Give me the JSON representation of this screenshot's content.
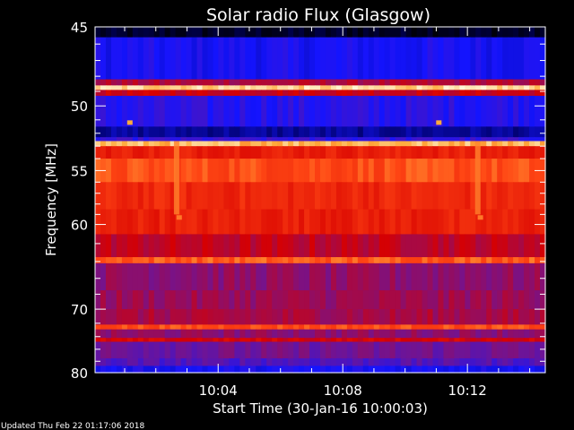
{
  "chart_data": {
    "type": "heatmap",
    "title": "Solar radio Flux (Glasgow)",
    "ylabel": "Frequency [MHz]",
    "xlabel": "Start Time (30-Jan-16 10:00:03)",
    "ylim": [
      45,
      80
    ],
    "yscale": "reciprocal",
    "y_ticks": [
      45,
      50,
      55,
      60,
      70,
      80
    ],
    "y_minor_ticks": [
      46,
      47,
      48,
      49,
      51,
      52,
      53,
      54,
      56,
      57,
      58,
      59,
      62,
      64,
      66,
      68,
      72,
      74,
      76,
      78
    ],
    "xlim": [
      "10:00:03",
      "10:14:30"
    ],
    "x_ticks": [
      "10:04",
      "10:08",
      "10:12"
    ],
    "x_minor_ticks": [
      "10:01",
      "10:02",
      "10:03",
      "10:05",
      "10:06",
      "10:07",
      "10:09",
      "10:10",
      "10:11",
      "10:13",
      "10:14"
    ],
    "colormap": "black-blue-red-yellow-white",
    "bands": [
      {
        "f0": 45.0,
        "f1": 45.6,
        "level": 0.05
      },
      {
        "f0": 45.6,
        "f1": 48.2,
        "level": 0.3
      },
      {
        "f0": 48.2,
        "f1": 48.6,
        "level": 0.55
      },
      {
        "f0": 48.6,
        "f1": 48.9,
        "level": 0.95
      },
      {
        "f0": 48.9,
        "f1": 49.3,
        "level": 0.6
      },
      {
        "f0": 49.3,
        "f1": 51.5,
        "level": 0.33
      },
      {
        "f0": 51.5,
        "f1": 52.3,
        "level": 0.18
      },
      {
        "f0": 52.3,
        "f1": 52.6,
        "level": 0.35
      },
      {
        "f0": 52.6,
        "f1": 53.0,
        "level": 0.92
      },
      {
        "f0": 53.0,
        "f1": 54.0,
        "level": 0.7
      },
      {
        "f0": 54.0,
        "f1": 56.0,
        "level": 0.8
      },
      {
        "f0": 56.0,
        "f1": 58.5,
        "level": 0.72
      },
      {
        "f0": 58.5,
        "f1": 61.0,
        "level": 0.7
      },
      {
        "f0": 61.0,
        "f1": 63.5,
        "level": 0.58
      },
      {
        "f0": 63.5,
        "f1": 64.2,
        "level": 0.82
      },
      {
        "f0": 64.2,
        "f1": 67.5,
        "level": 0.5
      },
      {
        "f0": 67.5,
        "f1": 70.0,
        "level": 0.52
      },
      {
        "f0": 70.0,
        "f1": 72.2,
        "level": 0.54
      },
      {
        "f0": 72.2,
        "f1": 72.9,
        "level": 0.8
      },
      {
        "f0": 72.9,
        "f1": 74.2,
        "level": 0.5
      },
      {
        "f0": 74.2,
        "f1": 74.8,
        "level": 0.62
      },
      {
        "f0": 74.8,
        "f1": 77.5,
        "level": 0.45
      },
      {
        "f0": 77.5,
        "f1": 78.8,
        "level": 0.4
      },
      {
        "f0": 78.8,
        "f1": 80.0,
        "level": 0.3
      }
    ],
    "bright_columns": [
      "10:02:40",
      "10:12:20"
    ],
    "spots": [
      {
        "t": "10:01:10",
        "f": 51.2,
        "level": 0.9
      },
      {
        "t": "10:02:45",
        "f": 59.3,
        "level": 0.85
      },
      {
        "t": "10:11:05",
        "f": 51.2,
        "level": 0.9
      },
      {
        "t": "10:12:25",
        "f": 59.3,
        "level": 0.85
      }
    ]
  },
  "footer": {
    "updated": "Updated Thu Feb 22 01:17:06 2018"
  }
}
